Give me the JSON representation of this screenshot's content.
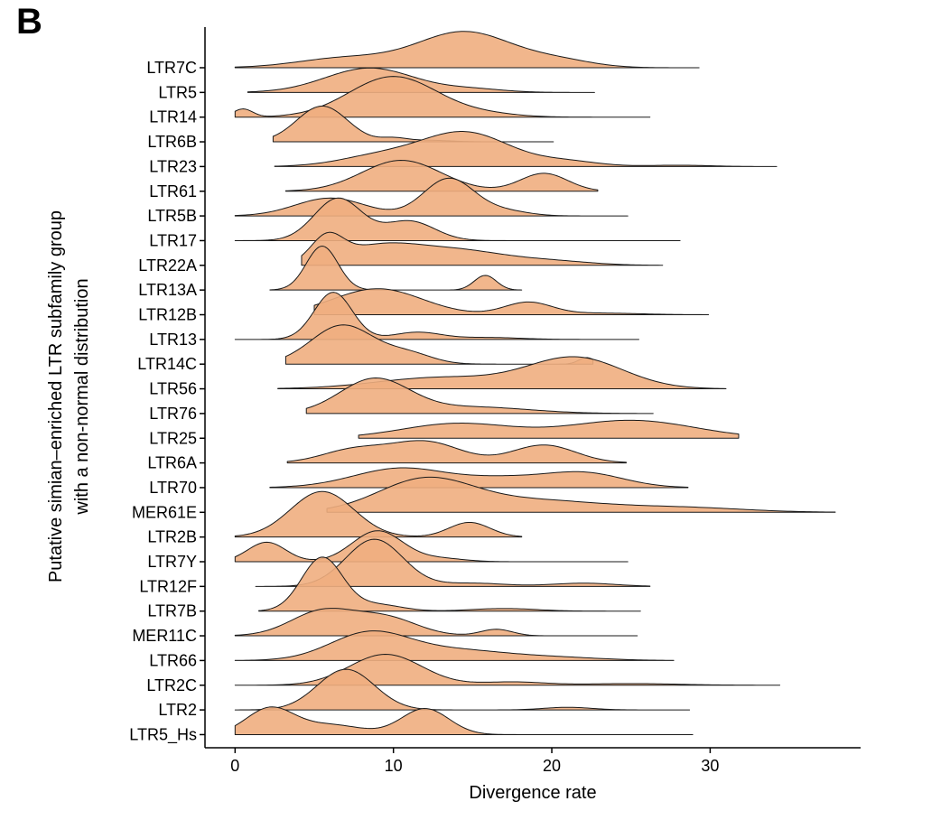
{
  "panel_label": "B",
  "chart_data": {
    "type": "ridgeline",
    "xlabel": "Divergence rate",
    "ylabel_lines": [
      "Putative simian–enriched LTR subfamily group",
      "with a non-normal distribution"
    ],
    "xlim": [
      -1.9,
      39.5
    ],
    "x_ticks": [
      0,
      10,
      20,
      30
    ],
    "fill_color": "#f0ae80",
    "stroke_color": "#1a1a1a",
    "series": [
      {
        "name": "LTR7C",
        "range": [
          0,
          29.3
        ],
        "peaks": [
          [
            7,
            3,
            0.3
          ],
          [
            14.5,
            3,
            1.1
          ],
          [
            20.5,
            2.2,
            0.2
          ]
        ]
      },
      {
        "name": "LTR5",
        "range": [
          0.8,
          22.7
        ],
        "peaks": [
          [
            8.5,
            2.8,
            0.75
          ],
          [
            15,
            2,
            0.1
          ]
        ]
      },
      {
        "name": "LTR14",
        "range": [
          0,
          26.2
        ],
        "peaks": [
          [
            0.5,
            0.6,
            0.25
          ],
          [
            10,
            2.8,
            1.25
          ],
          [
            16,
            2,
            0.08
          ]
        ]
      },
      {
        "name": "LTR6B",
        "range": [
          2.4,
          20.1
        ],
        "peaks": [
          [
            5.5,
            1.6,
            1.1
          ],
          [
            10,
            0.8,
            0.1
          ],
          [
            12,
            1.5,
            0.05
          ]
        ]
      },
      {
        "name": "LTR23",
        "range": [
          2.5,
          34.2
        ],
        "peaks": [
          [
            9,
            2.5,
            0.3
          ],
          [
            14.5,
            2.8,
            1.05
          ],
          [
            21,
            2,
            0.15
          ],
          [
            28,
            2,
            0.04
          ]
        ]
      },
      {
        "name": "LTR61",
        "range": [
          3.2,
          22.9
        ],
        "peaks": [
          [
            10.5,
            2.5,
            0.95
          ],
          [
            19.5,
            1.5,
            0.55
          ]
        ]
      },
      {
        "name": "LTR5B",
        "range": [
          0,
          24.8
        ],
        "peaks": [
          [
            6,
            2.2,
            0.55
          ],
          [
            13.5,
            1.6,
            1.15
          ],
          [
            17,
            1.5,
            0.15
          ]
        ]
      },
      {
        "name": "LTR17",
        "range": [
          0,
          28.1
        ],
        "peaks": [
          [
            6.5,
            1.5,
            1.3
          ],
          [
            11,
            1.6,
            0.6
          ]
        ]
      },
      {
        "name": "LTR22A",
        "range": [
          4.2,
          27
        ],
        "peaks": [
          [
            5.8,
            1,
            0.75
          ],
          [
            9,
            2.5,
            0.55
          ],
          [
            14,
            3,
            0.45
          ],
          [
            20,
            2.5,
            0.12
          ]
        ]
      },
      {
        "name": "LTR13A",
        "range": [
          2.2,
          18.1
        ],
        "peaks": [
          [
            5.5,
            1,
            1.35
          ],
          [
            15.8,
            0.7,
            0.45
          ]
        ]
      },
      {
        "name": "LTR12B",
        "range": [
          5,
          29.9
        ],
        "peaks": [
          [
            9,
            2.8,
            0.8
          ],
          [
            18.5,
            1.5,
            0.38
          ],
          [
            23,
            2.5,
            0.05
          ]
        ]
      },
      {
        "name": "LTR13",
        "range": [
          0,
          25.5
        ],
        "peaks": [
          [
            6.2,
            1.2,
            1.45
          ],
          [
            11.5,
            1.5,
            0.22
          ],
          [
            16,
            2,
            0.06
          ]
        ]
      },
      {
        "name": "LTR14C",
        "range": [
          3.2,
          22.6
        ],
        "peaks": [
          [
            6.8,
            2,
            1.2
          ],
          [
            11,
            1.5,
            0.3
          ],
          [
            22.2,
            0.5,
            0.2
          ]
        ]
      },
      {
        "name": "LTR56",
        "range": [
          2.7,
          31
        ],
        "peaks": [
          [
            13,
            4,
            0.35
          ],
          [
            21.5,
            3,
            0.95
          ]
        ]
      },
      {
        "name": "LTR76",
        "range": [
          4.5,
          26.4
        ],
        "peaks": [
          [
            8.8,
            2.2,
            1.05
          ],
          [
            15,
            3.5,
            0.2
          ]
        ]
      },
      {
        "name": "LTR25",
        "range": [
          7.8,
          31.8
        ],
        "peaks": [
          [
            14,
            3.5,
            0.45
          ],
          [
            25,
            4,
            0.55
          ]
        ]
      },
      {
        "name": "LTR6A",
        "range": [
          3.3,
          24.7
        ],
        "peaks": [
          [
            7.5,
            2,
            0.4
          ],
          [
            12,
            2.2,
            0.65
          ],
          [
            19.5,
            2,
            0.55
          ]
        ]
      },
      {
        "name": "LTR70",
        "range": [
          2.2,
          28.6
        ],
        "peaks": [
          [
            10.5,
            3,
            0.6
          ],
          [
            17,
            2.5,
            0.25
          ],
          [
            22,
            2.5,
            0.45
          ]
        ]
      },
      {
        "name": "MER61E",
        "range": [
          5.8,
          37.9
        ],
        "peaks": [
          [
            12,
            3,
            1
          ],
          [
            19,
            4,
            0.35
          ],
          [
            28,
            4,
            0.15
          ]
        ]
      },
      {
        "name": "LTR2B",
        "range": [
          0,
          18.1
        ],
        "peaks": [
          [
            5.5,
            2,
            1.4
          ],
          [
            14.8,
            1.3,
            0.45
          ]
        ]
      },
      {
        "name": "LTR7Y",
        "range": [
          0,
          24.8
        ],
        "peaks": [
          [
            2,
            1.2,
            0.6
          ],
          [
            9,
            1.6,
            0.95
          ],
          [
            13,
            1.5,
            0.1
          ]
        ]
      },
      {
        "name": "LTR12F",
        "range": [
          1.3,
          26.2
        ],
        "peaks": [
          [
            8.8,
            1.8,
            1.45
          ],
          [
            15,
            2,
            0.1
          ],
          [
            22,
            2,
            0.1
          ]
        ]
      },
      {
        "name": "LTR7B",
        "range": [
          1.5,
          25.6
        ],
        "peaks": [
          [
            5.5,
            1.3,
            1.65
          ],
          [
            9,
            1.5,
            0.2
          ],
          [
            17,
            2,
            0.08
          ]
        ]
      },
      {
        "name": "MER11C",
        "range": [
          0,
          25.4
        ],
        "peaks": [
          [
            5.5,
            2,
            0.75
          ],
          [
            9.5,
            2,
            0.55
          ],
          [
            16.5,
            1,
            0.2
          ]
        ]
      },
      {
        "name": "LTR66",
        "range": [
          0,
          27.7
        ],
        "peaks": [
          [
            8.5,
            2.5,
            0.85
          ],
          [
            14,
            3,
            0.3
          ],
          [
            20,
            3,
            0.1
          ]
        ]
      },
      {
        "name": "LTR2C",
        "range": [
          0,
          34.4
        ],
        "peaks": [
          [
            9.5,
            2.3,
            0.95
          ],
          [
            17.5,
            2,
            0.1
          ],
          [
            25,
            3,
            0.05
          ]
        ]
      },
      {
        "name": "LTR2",
        "range": [
          0,
          28.7
        ],
        "peaks": [
          [
            7,
            1.8,
            1.25
          ],
          [
            21,
            1.5,
            0.08
          ]
        ]
      },
      {
        "name": "LTR5_Hs",
        "range": [
          0,
          28.9
        ],
        "peaks": [
          [
            2.2,
            1.5,
            0.8
          ],
          [
            6,
            2,
            0.3
          ],
          [
            12,
            1.5,
            0.8
          ]
        ]
      }
    ]
  }
}
